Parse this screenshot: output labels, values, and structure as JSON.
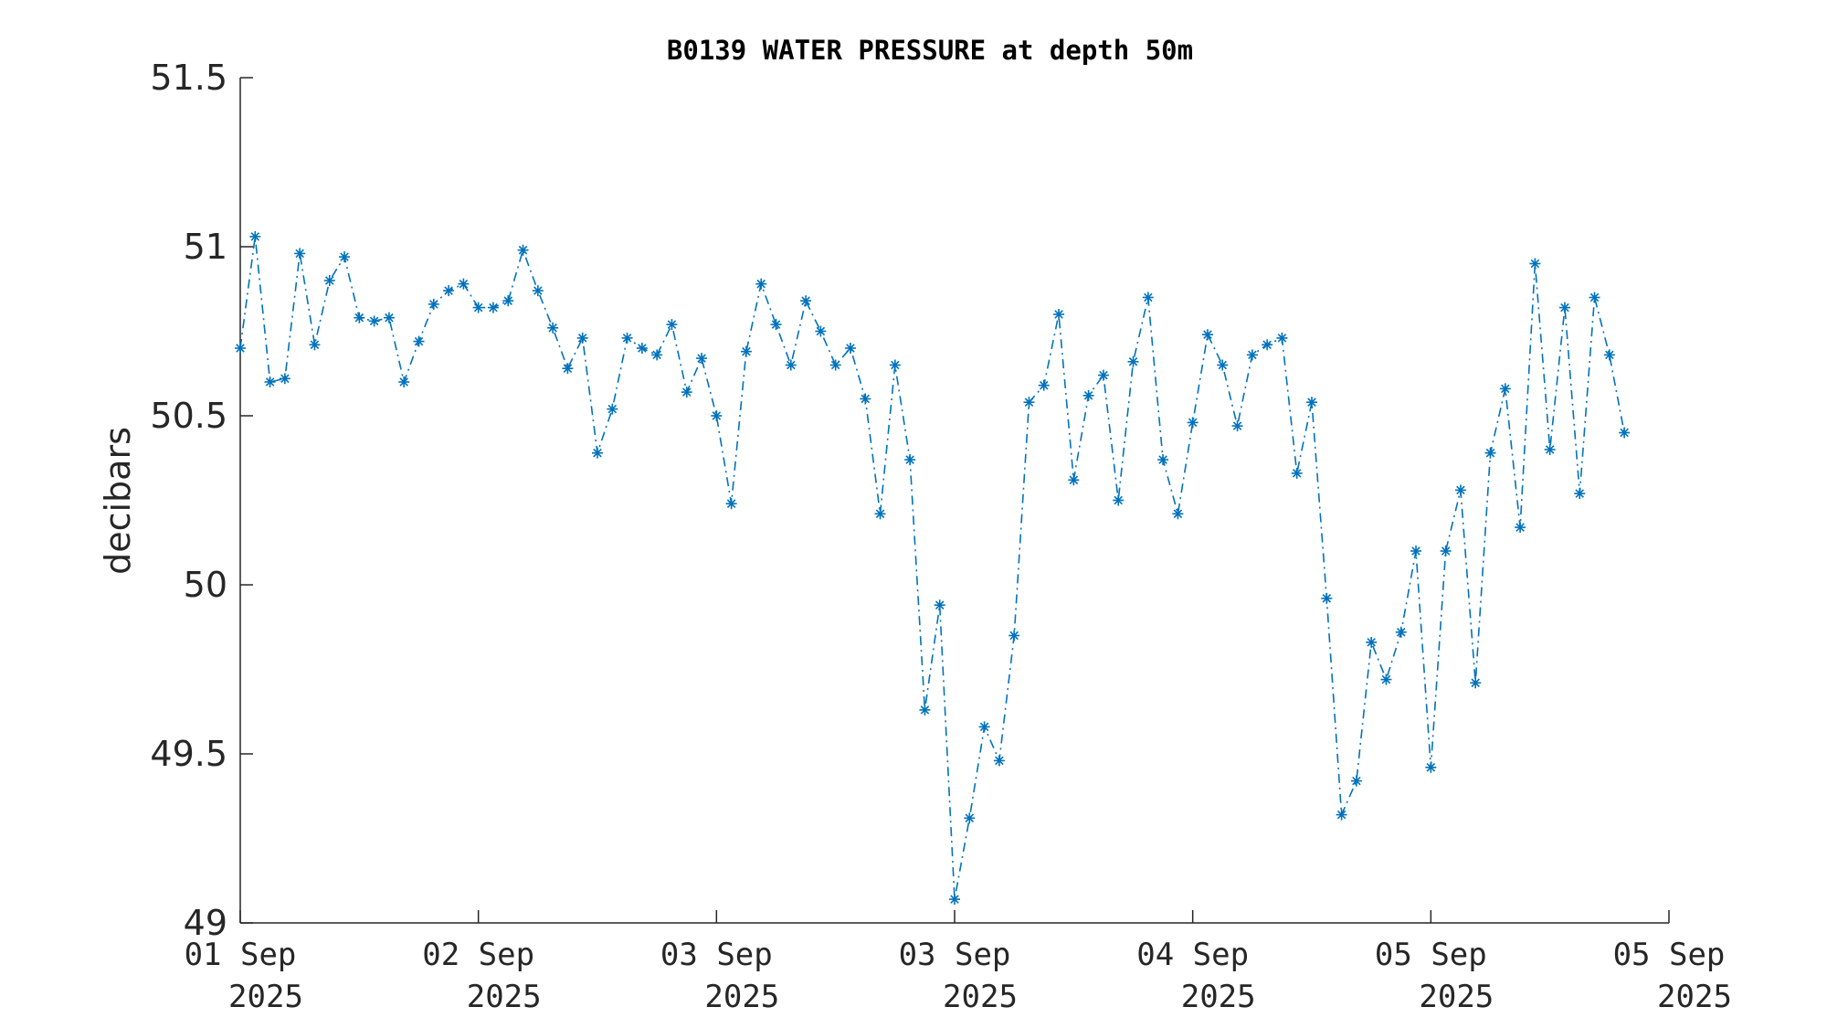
{
  "chart_data": {
    "type": "line",
    "title": "B0139 WATER PRESSURE at depth 50m",
    "xlabel": "",
    "ylabel": "decibars",
    "ylim": [
      49,
      51.5
    ],
    "xlim": [
      "2025-09-01 00:00",
      "2025-09-07 00:00"
    ],
    "yticks": [
      "49",
      "49.5",
      "50",
      "50.5",
      "51",
      "51.5"
    ],
    "xticks": [
      {
        "line1": "01 Sep",
        "line2": "2025"
      },
      {
        "line1": "02 Sep",
        "line2": "2025"
      },
      {
        "line1": "03 Sep",
        "line2": "2025"
      },
      {
        "line1": "03 Sep",
        "line2": "2025"
      },
      {
        "line1": "04 Sep",
        "line2": "2025"
      },
      {
        "line1": "05 Sep",
        "line2": "2025"
      },
      {
        "line1": "05 Sep",
        "line2": "2025"
      }
    ],
    "grid": false,
    "legend": false,
    "marker": "asterisk",
    "line_style": "dash-dot",
    "series": [
      {
        "color": "#0072BD",
        "x_start": "2025-09-01 00:00",
        "x_step_hours": 1.5,
        "values": [
          50.7,
          51.03,
          50.6,
          50.61,
          50.98,
          50.71,
          50.9,
          50.97,
          50.79,
          50.78,
          50.79,
          50.6,
          50.72,
          50.83,
          50.87,
          50.89,
          50.82,
          50.82,
          50.84,
          50.99,
          50.87,
          50.76,
          50.64,
          50.73,
          50.39,
          50.52,
          50.73,
          50.7,
          50.68,
          50.77,
          50.57,
          50.67,
          50.5,
          50.24,
          50.69,
          50.89,
          50.77,
          50.65,
          50.84,
          50.75,
          50.65,
          50.7,
          50.55,
          50.21,
          50.65,
          50.37,
          49.63,
          49.94,
          49.07,
          49.31,
          49.58,
          49.48,
          49.85,
          50.54,
          50.59,
          50.8,
          50.31,
          50.56,
          50.62,
          50.25,
          50.66,
          50.85,
          50.37,
          50.21,
          50.48,
          50.74,
          50.65,
          50.47,
          50.68,
          50.71,
          50.73,
          50.33,
          50.54,
          49.96,
          49.32,
          49.42,
          49.83,
          49.72,
          49.86,
          50.1,
          49.46,
          50.1,
          50.28,
          49.71,
          50.39,
          50.58,
          50.17,
          50.95,
          50.4,
          50.82,
          50.27,
          50.85,
          50.68,
          50.45
        ]
      }
    ]
  }
}
